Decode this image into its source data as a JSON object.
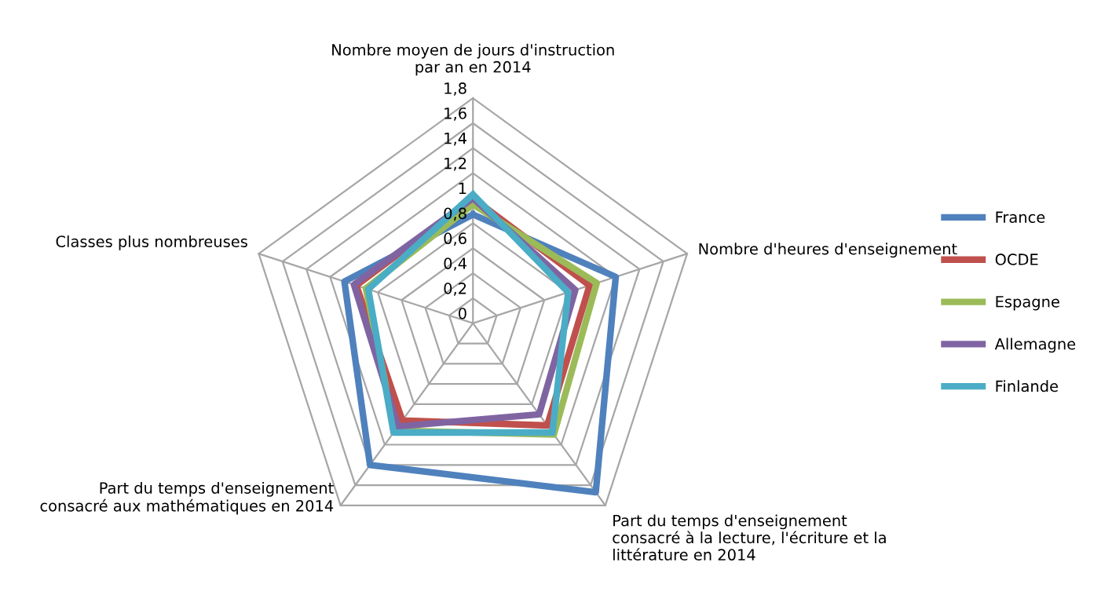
{
  "chart_data": {
    "type": "radar",
    "categories": [
      "Nombre moyen de jours d'instruction par an en 2014",
      "Nombre d'heures d'enseignement",
      "Part du temps d'enseignement consacré à la lecture, l'écriture et la littérature en 2014",
      "Part du temps d'enseignement consacré aux mathématiques en 2014",
      "Classes plus nombreuses"
    ],
    "series": [
      {
        "name": "France",
        "color": "#4f81bd",
        "values": [
          0.87,
          1.2,
          1.67,
          1.4,
          1.08
        ]
      },
      {
        "name": "OCDE",
        "color": "#c0504d",
        "values": [
          1.0,
          0.98,
          1.01,
          0.96,
          0.98
        ]
      },
      {
        "name": "Espagne",
        "color": "#9bbb59",
        "values": [
          0.95,
          1.04,
          1.1,
          1.06,
          0.9
        ]
      },
      {
        "name": "Allemagne",
        "color": "#8064a2",
        "values": [
          1.0,
          0.86,
          0.9,
          1.02,
          1.0
        ]
      },
      {
        "name": "Finlande",
        "color": "#4bacc6",
        "values": [
          1.03,
          0.8,
          1.08,
          1.08,
          0.88
        ]
      }
    ],
    "ylim": [
      0,
      1.8
    ],
    "yticks": [
      0,
      {
        "value": 0.2,
        "label": "0,2"
      },
      {
        "value": 0.4,
        "label": "0,4"
      },
      {
        "value": 0.6,
        "label": "0,6"
      },
      {
        "value": 0.8,
        "label": "0,8"
      },
      1,
      {
        "value": 1.2,
        "label": "1,2"
      },
      {
        "value": 1.4,
        "label": "1,4"
      },
      {
        "value": 1.6,
        "label": "1,6"
      },
      {
        "value": 1.8,
        "label": "1,8"
      }
    ],
    "grid": true,
    "legend": "right",
    "marker": "none",
    "line_style": "solid"
  }
}
